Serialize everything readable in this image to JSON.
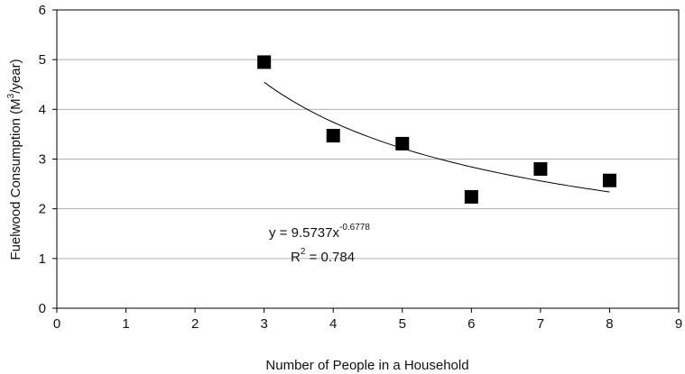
{
  "chart_data": {
    "type": "scatter",
    "title": "",
    "xlabel": "Number of People in a Household",
    "ylabel_main": "Fuelwood Consumption (M",
    "ylabel_sup": "3",
    "ylabel_end": "/year)",
    "xlim": [
      0,
      9
    ],
    "ylim": [
      0,
      6
    ],
    "xticks": [
      0,
      1,
      2,
      3,
      4,
      5,
      6,
      7,
      8,
      9
    ],
    "yticks": [
      0,
      1,
      2,
      3,
      4,
      5,
      6
    ],
    "grid": "horizontal",
    "legend": "none",
    "points": [
      {
        "x": 3,
        "y": 4.95
      },
      {
        "x": 4,
        "y": 3.47
      },
      {
        "x": 5,
        "y": 3.31
      },
      {
        "x": 6,
        "y": 2.24
      },
      {
        "x": 7,
        "y": 2.8
      },
      {
        "x": 8,
        "y": 2.57
      }
    ],
    "trendline": {
      "type": "power",
      "a": 9.5737,
      "b": -0.6778,
      "x_range": [
        3,
        8
      ]
    },
    "equation": {
      "prefix": "y = 9.5737x",
      "exponent": "-0.6778",
      "r2_prefix": "R",
      "r2_sup": "2",
      "r2_value": " = 0.784"
    },
    "colors": {
      "marker": "#000000",
      "trendline": "#000000",
      "grid": "#b0b0b0",
      "axis": "#000000"
    }
  }
}
